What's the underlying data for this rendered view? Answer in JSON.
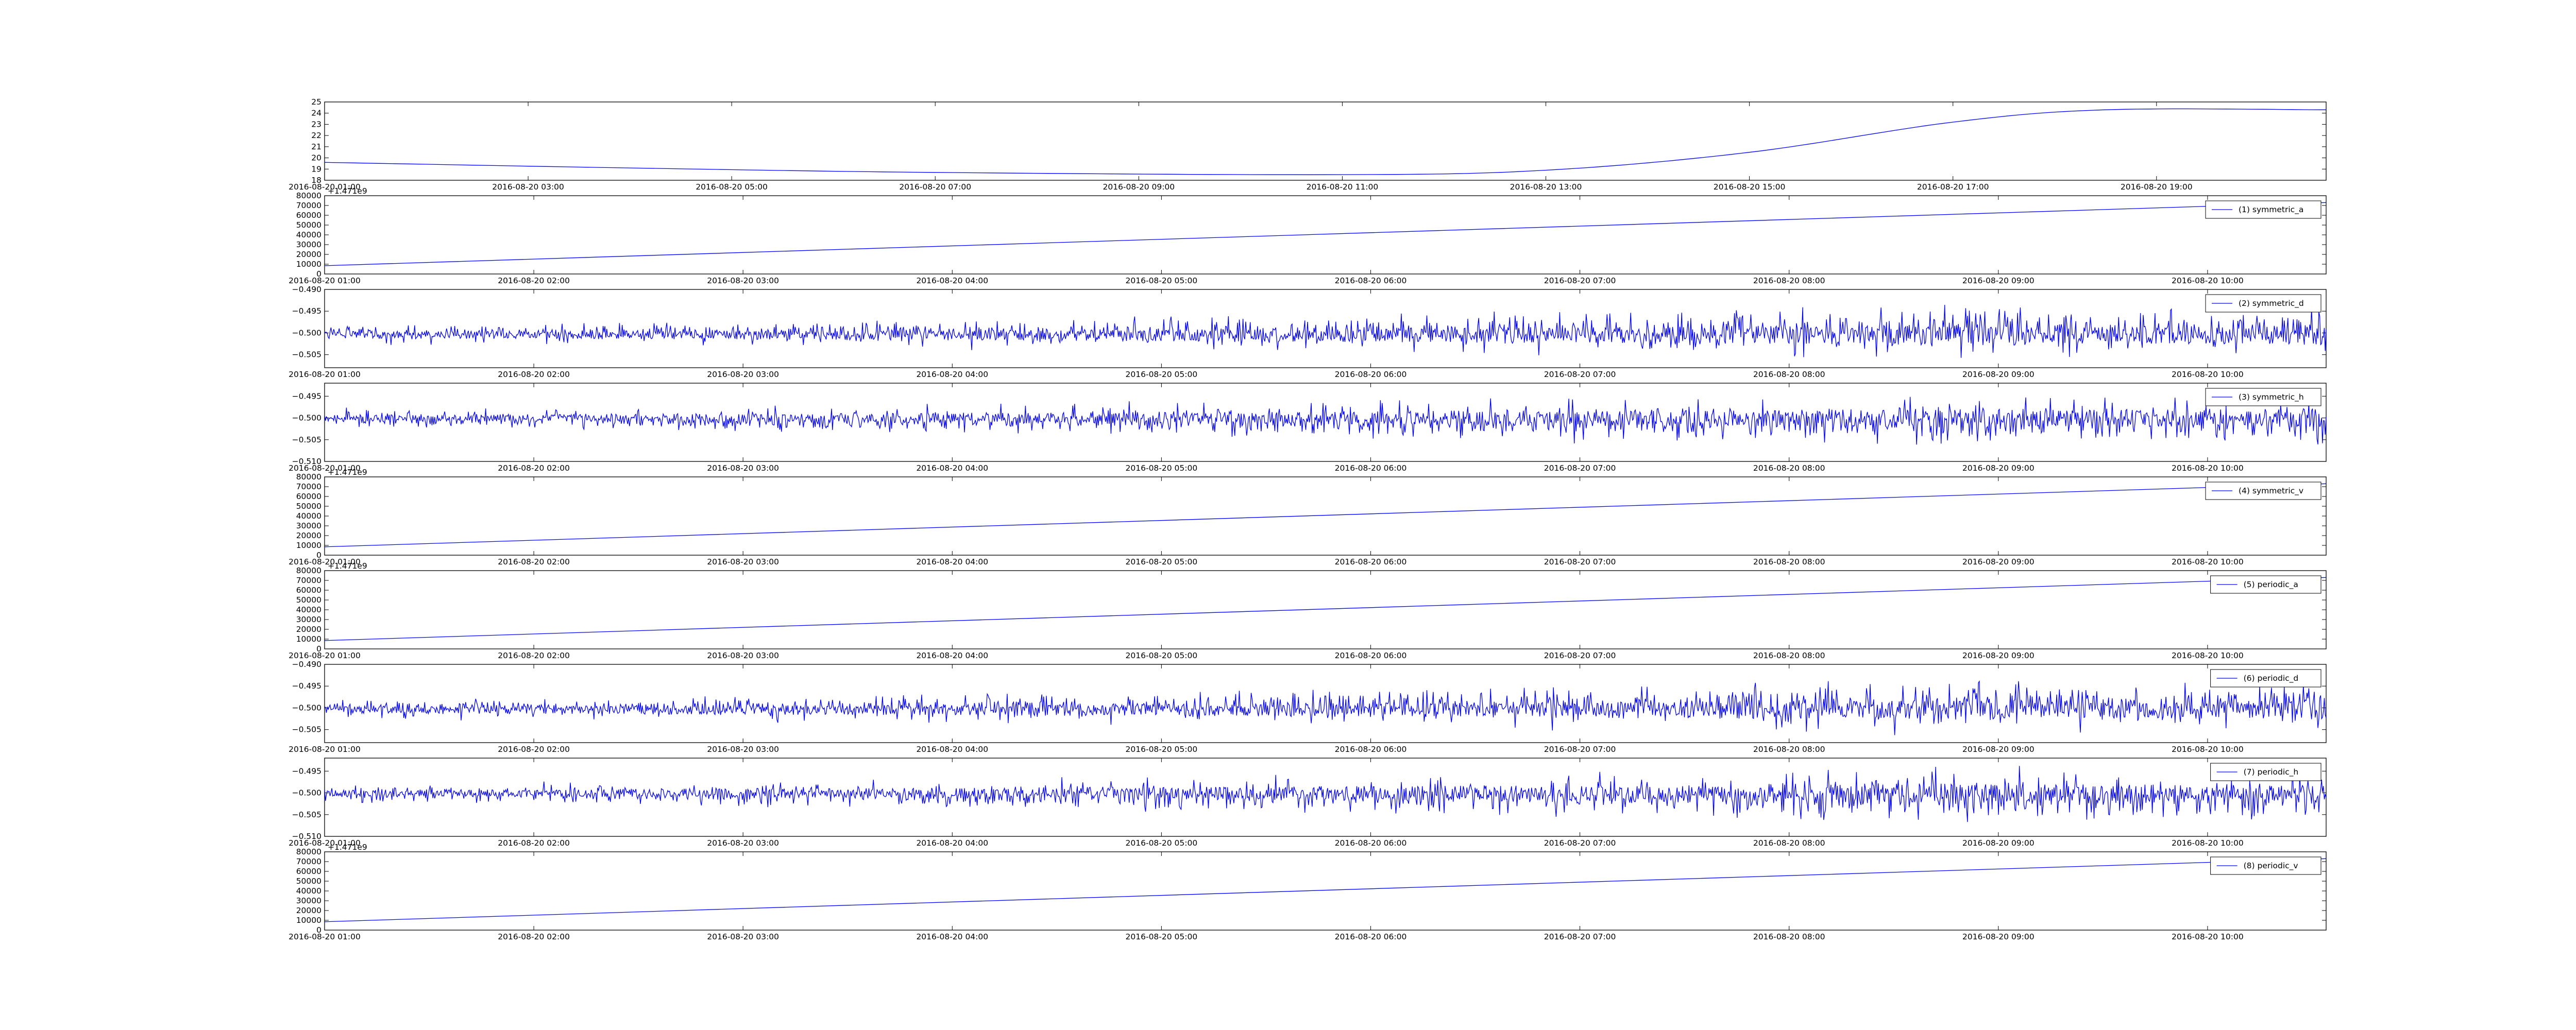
{
  "colors": {
    "line": "#0000ff",
    "axes": "#000000",
    "background": "#ffffff"
  },
  "chart_data": [
    {
      "type": "line",
      "title": "",
      "xlabel": "",
      "ylabel": "",
      "grid": false,
      "series": [
        {
          "x": [
            "2016-08-20 01:00",
            "2016-08-20 04:00",
            "2016-08-20 07:00",
            "2016-08-20 11:00",
            "2016-08-20 13:00",
            "2016-08-20 15:00",
            "2016-08-20 17:00",
            "2016-08-20 18:30",
            "2016-08-20 20:40"
          ],
          "y": [
            19.6,
            19.1,
            18.7,
            18.5,
            18.9,
            20.5,
            23.2,
            24.3,
            24.3
          ]
        }
      ],
      "xlim": [
        "2016-08-20 01:00",
        "2016-08-20 20:40"
      ],
      "ylim": [
        18,
        25
      ],
      "yticks": [
        18,
        19,
        20,
        21,
        22,
        23,
        24,
        25
      ],
      "xticks": [
        "2016-08-20 01:00",
        "2016-08-20 03:00",
        "2016-08-20 05:00",
        "2016-08-20 07:00",
        "2016-08-20 09:00",
        "2016-08-20 11:00",
        "2016-08-20 13:00",
        "2016-08-20 15:00",
        "2016-08-20 17:00",
        "2016-08-20 19:00"
      ]
    },
    {
      "type": "line",
      "title": "",
      "xlabel": "",
      "ylabel": "",
      "grid": false,
      "legend": "top-right",
      "series": [
        {
          "name": "(1) symmetric_a",
          "x": [
            "2016-08-20 01:00",
            "2016-08-20 10:34"
          ],
          "y": [
            8500,
            73000
          ]
        }
      ],
      "xlim": [
        "2016-08-20 01:00",
        "2016-08-20 10:34"
      ],
      "ylim": [
        0,
        80000
      ],
      "yticks": [
        0,
        10000,
        20000,
        30000,
        40000,
        50000,
        60000,
        70000,
        80000
      ],
      "offset_text": "+1.471e9",
      "xticks": [
        "2016-08-20 01:00",
        "2016-08-20 02:00",
        "2016-08-20 03:00",
        "2016-08-20 04:00",
        "2016-08-20 05:00",
        "2016-08-20 06:00",
        "2016-08-20 07:00",
        "2016-08-20 08:00",
        "2016-08-20 09:00",
        "2016-08-20 10:00"
      ]
    },
    {
      "type": "line",
      "title": "",
      "xlabel": "",
      "ylabel": "",
      "grid": false,
      "legend": "top-right",
      "series": [
        {
          "name": "(2) symmetric_d",
          "baseline": -0.5005,
          "profile": "rising",
          "direction": "up",
          "x": [
            "2016-08-20 01:00",
            "2016-08-20 10:34"
          ]
        }
      ],
      "xlim": [
        "2016-08-20 01:00",
        "2016-08-20 10:34"
      ],
      "ylim": [
        -0.508,
        -0.49
      ],
      "yticks": [
        -0.505,
        -0.5,
        -0.495,
        -0.49
      ],
      "ytick_labels": [
        "−0.505",
        "−0.500",
        "−0.495",
        "−0.490"
      ],
      "xticks": [
        "2016-08-20 01:00",
        "2016-08-20 02:00",
        "2016-08-20 03:00",
        "2016-08-20 04:00",
        "2016-08-20 05:00",
        "2016-08-20 06:00",
        "2016-08-20 07:00",
        "2016-08-20 08:00",
        "2016-08-20 09:00",
        "2016-08-20 10:00"
      ]
    },
    {
      "type": "line",
      "title": "",
      "xlabel": "",
      "ylabel": "",
      "grid": false,
      "legend": "top-right",
      "series": [
        {
          "name": "(3) symmetric_h",
          "baseline": -0.5,
          "profile": "rising",
          "direction": "down",
          "x": [
            "2016-08-20 01:00",
            "2016-08-20 10:34"
          ]
        }
      ],
      "xlim": [
        "2016-08-20 01:00",
        "2016-08-20 10:34"
      ],
      "ylim": [
        -0.51,
        -0.492
      ],
      "yticks": [
        -0.51,
        -0.505,
        -0.5,
        -0.495
      ],
      "ytick_labels": [
        "−0.510",
        "−0.505",
        "−0.500",
        "−0.495"
      ],
      "xticks": [
        "2016-08-20 01:00",
        "2016-08-20 02:00",
        "2016-08-20 03:00",
        "2016-08-20 04:00",
        "2016-08-20 05:00",
        "2016-08-20 06:00",
        "2016-08-20 07:00",
        "2016-08-20 08:00",
        "2016-08-20 09:00",
        "2016-08-20 10:00"
      ]
    },
    {
      "type": "line",
      "title": "",
      "xlabel": "",
      "ylabel": "",
      "grid": false,
      "legend": "top-right",
      "series": [
        {
          "name": "(4) symmetric_v",
          "x": [
            "2016-08-20 01:00",
            "2016-08-20 10:34"
          ],
          "y": [
            8500,
            73000
          ]
        }
      ],
      "xlim": [
        "2016-08-20 01:00",
        "2016-08-20 10:34"
      ],
      "ylim": [
        0,
        80000
      ],
      "yticks": [
        0,
        10000,
        20000,
        30000,
        40000,
        50000,
        60000,
        70000,
        80000
      ],
      "offset_text": "+1.471e9",
      "xticks": [
        "2016-08-20 01:00",
        "2016-08-20 02:00",
        "2016-08-20 03:00",
        "2016-08-20 04:00",
        "2016-08-20 05:00",
        "2016-08-20 06:00",
        "2016-08-20 07:00",
        "2016-08-20 08:00",
        "2016-08-20 09:00",
        "2016-08-20 10:00"
      ]
    },
    {
      "type": "line",
      "title": "",
      "xlabel": "",
      "ylabel": "",
      "grid": false,
      "legend": "top-right",
      "series": [
        {
          "name": "(5) periodic_a",
          "x": [
            "2016-08-20 01:00",
            "2016-08-20 10:34"
          ],
          "y": [
            8500,
            73000
          ]
        }
      ],
      "xlim": [
        "2016-08-20 01:00",
        "2016-08-20 10:34"
      ],
      "ylim": [
        0,
        80000
      ],
      "yticks": [
        0,
        10000,
        20000,
        30000,
        40000,
        50000,
        60000,
        70000,
        80000
      ],
      "offset_text": "+1.471e9",
      "xticks": [
        "2016-08-20 01:00",
        "2016-08-20 02:00",
        "2016-08-20 03:00",
        "2016-08-20 04:00",
        "2016-08-20 05:00",
        "2016-08-20 06:00",
        "2016-08-20 07:00",
        "2016-08-20 08:00",
        "2016-08-20 09:00",
        "2016-08-20 10:00"
      ]
    },
    {
      "type": "line",
      "title": "",
      "xlabel": "",
      "ylabel": "",
      "grid": false,
      "legend": "top-right",
      "series": [
        {
          "name": "(6) periodic_d",
          "baseline": -0.5005,
          "profile": "rising",
          "direction": "up",
          "x": [
            "2016-08-20 01:00",
            "2016-08-20 10:34"
          ]
        }
      ],
      "xlim": [
        "2016-08-20 01:00",
        "2016-08-20 10:34"
      ],
      "ylim": [
        -0.508,
        -0.49
      ],
      "yticks": [
        -0.505,
        -0.5,
        -0.495,
        -0.49
      ],
      "ytick_labels": [
        "−0.505",
        "−0.500",
        "−0.495",
        "−0.490"
      ],
      "xticks": [
        "2016-08-20 01:00",
        "2016-08-20 02:00",
        "2016-08-20 03:00",
        "2016-08-20 04:00",
        "2016-08-20 05:00",
        "2016-08-20 06:00",
        "2016-08-20 07:00",
        "2016-08-20 08:00",
        "2016-08-20 09:00",
        "2016-08-20 10:00"
      ]
    },
    {
      "type": "line",
      "title": "",
      "xlabel": "",
      "ylabel": "",
      "grid": false,
      "legend": "top-right",
      "series": [
        {
          "name": "(7) periodic_h",
          "baseline": -0.5,
          "profile": "rising",
          "direction": "down",
          "x": [
            "2016-08-20 01:00",
            "2016-08-20 10:34"
          ]
        }
      ],
      "xlim": [
        "2016-08-20 01:00",
        "2016-08-20 10:34"
      ],
      "ylim": [
        -0.51,
        -0.492
      ],
      "yticks": [
        -0.51,
        -0.505,
        -0.5,
        -0.495
      ],
      "ytick_labels": [
        "−0.510",
        "−0.505",
        "−0.500",
        "−0.495"
      ],
      "xticks": [
        "2016-08-20 01:00",
        "2016-08-20 02:00",
        "2016-08-20 03:00",
        "2016-08-20 04:00",
        "2016-08-20 05:00",
        "2016-08-20 06:00",
        "2016-08-20 07:00",
        "2016-08-20 08:00",
        "2016-08-20 09:00",
        "2016-08-20 10:00"
      ]
    },
    {
      "type": "line",
      "title": "",
      "xlabel": "",
      "ylabel": "",
      "grid": false,
      "legend": "top-right",
      "series": [
        {
          "name": "(8) periodic_v",
          "x": [
            "2016-08-20 01:00",
            "2016-08-20 10:34"
          ],
          "y": [
            8500,
            73000
          ]
        }
      ],
      "xlim": [
        "2016-08-20 01:00",
        "2016-08-20 10:34"
      ],
      "ylim": [
        0,
        80000
      ],
      "yticks": [
        0,
        10000,
        20000,
        30000,
        40000,
        50000,
        60000,
        70000,
        80000
      ],
      "offset_text": "+1.471e9",
      "xticks": [
        "2016-08-20 01:00",
        "2016-08-20 02:00",
        "2016-08-20 03:00",
        "2016-08-20 04:00",
        "2016-08-20 05:00",
        "2016-08-20 06:00",
        "2016-08-20 07:00",
        "2016-08-20 08:00",
        "2016-08-20 09:00",
        "2016-08-20 10:00"
      ]
    }
  ]
}
